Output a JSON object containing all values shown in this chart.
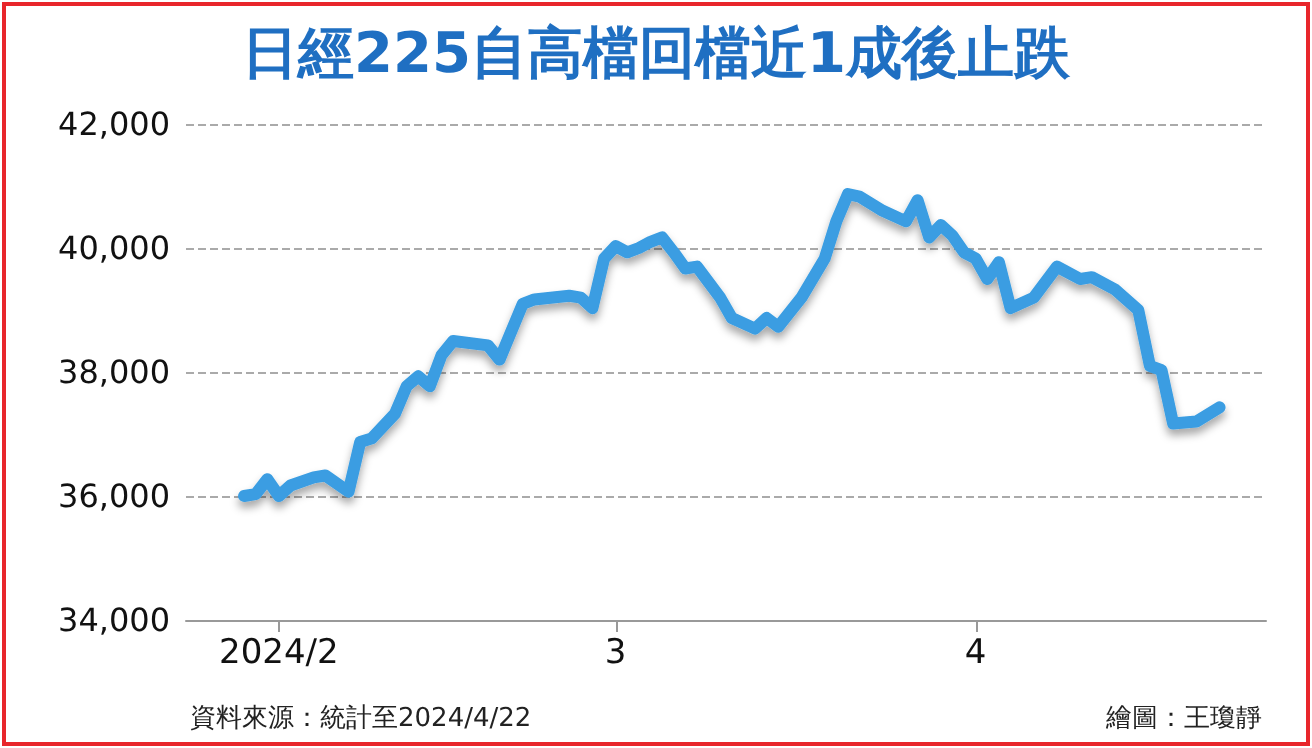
{
  "chart_data": {
    "type": "line",
    "title": "日經225自高檔回檔近1成後止跌",
    "x": [
      "2024-01-29",
      "2024-01-30",
      "2024-01-31",
      "2024-02-01",
      "2024-02-02",
      "2024-02-04",
      "2024-02-05",
      "2024-02-07",
      "2024-02-08",
      "2024-02-09",
      "2024-02-11",
      "2024-02-12",
      "2024-02-13",
      "2024-02-14",
      "2024-02-15",
      "2024-02-16",
      "2024-02-19",
      "2024-02-20",
      "2024-02-22",
      "2024-02-23",
      "2024-02-26",
      "2024-02-27",
      "2024-02-28",
      "2024-02-29",
      "2024-03-01",
      "2024-03-02",
      "2024-03-03",
      "2024-03-04",
      "2024-03-05",
      "2024-03-06",
      "2024-03-07",
      "2024-03-08",
      "2024-03-10",
      "2024-03-11",
      "2024-03-13",
      "2024-03-14",
      "2024-03-15",
      "2024-03-17",
      "2024-03-19",
      "2024-03-20",
      "2024-03-21",
      "2024-03-22",
      "2024-03-24",
      "2024-03-26",
      "2024-03-27",
      "2024-03-28",
      "2024-03-29",
      "2024-03-30",
      "2024-03-31",
      "2024-04-01",
      "2024-04-02",
      "2024-04-03",
      "2024-04-04",
      "2024-04-06",
      "2024-04-08",
      "2024-04-10",
      "2024-04-11",
      "2024-04-13",
      "2024-04-15",
      "2024-04-16",
      "2024-04-17",
      "2024-04-18",
      "2024-04-20",
      "2024-04-22"
    ],
    "series": [
      {
        "color": "#3a9de2",
        "values": [
          36000,
          36030,
          36270,
          36000,
          36170,
          36300,
          36330,
          36070,
          36870,
          36930,
          37330,
          37770,
          37930,
          37770,
          38270,
          38500,
          38430,
          38200,
          39100,
          39170,
          39230,
          39200,
          39030,
          39830,
          40030,
          39930,
          40000,
          40100,
          40170,
          39930,
          39670,
          39700,
          39200,
          38870,
          38700,
          38870,
          38730,
          39200,
          39830,
          40430,
          40870,
          40830,
          40600,
          40430,
          40770,
          40170,
          40370,
          40200,
          39930,
          39830,
          39500,
          39770,
          39030,
          39200,
          39700,
          39500,
          39530,
          39330,
          39000,
          38100,
          38030,
          37170,
          37200,
          37430
        ]
      }
    ],
    "xlim": [
      "2024-01-24",
      "2024-04-26"
    ],
    "xticks": [
      {
        "value": "2024-02-01",
        "label": "2024/2"
      },
      {
        "value": "2024-03-01",
        "label": "3"
      },
      {
        "value": "2024-04-01",
        "label": "4"
      }
    ],
    "ylim": [
      34000,
      42000
    ],
    "yticks": [
      {
        "value": 34000,
        "label": "34,000"
      },
      {
        "value": 36000,
        "label": "36,000"
      },
      {
        "value": 38000,
        "label": "38,000"
      },
      {
        "value": 40000,
        "label": "40,000"
      },
      {
        "value": 42000,
        "label": "42,000"
      }
    ],
    "grid": "y",
    "marker": "none",
    "line_style": "solid",
    "annotations": [
      "資料來源：統計至2024/4/22",
      "繪圖：王瓊靜"
    ]
  }
}
